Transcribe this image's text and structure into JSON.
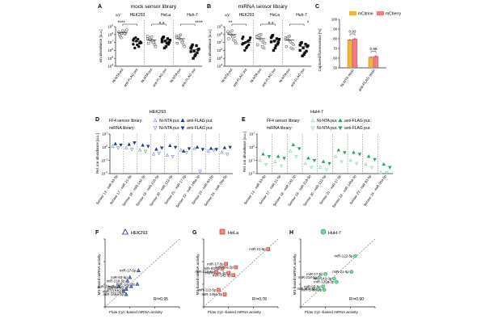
{
  "colors": {
    "axis": "#222222",
    "grid_sep": "#666666",
    "open_marker": "#666666",
    "dark_marker": "#111111",
    "hek_blue": "#1d3a8a",
    "hek_blue_open": "#6f86c9",
    "huh_green": "#22a35a",
    "huh_green_open": "#7ad49b",
    "hela_red": "#c0392b",
    "hela_red_light": "#f08a8a",
    "bar_yellow": "#f0b63a",
    "bar_pink": "#f47a86"
  },
  "panels": {
    "A": {
      "letter": "A",
      "title": "mock sensor library",
      "cell_lines": [
        "HEK293",
        "HeLa",
        "Huh-7"
      ],
      "row_marker": "x/y",
      "ylabel": "Ion abundance [a.u.]",
      "yticks": [
        "10^9",
        "10^8",
        "10^7",
        "10^6",
        "10^5",
        "10^4"
      ],
      "xlabels": [
        "Ni-NTA pur.",
        "anti-FLAG pur.",
        "Ni-NTA pur.",
        "anti-FLAG pur.",
        "Ni-NTA pur.",
        "anti-FLAG pur."
      ],
      "significance": [
        "****",
        "n.s",
        "****"
      ],
      "chart_data": {
        "type": "scatter",
        "yscale": "log",
        "ylim": [
          10000,
          1000000000
        ],
        "categories": [
          "HEK293 Ni-NTA pur.",
          "HEK293 anti-FLAG pur.",
          "HeLa Ni-NTA pur.",
          "HeLa anti-FLAG pur.",
          "Huh-7 Ni-NTA pur.",
          "Huh-7 anti-FLAG pur."
        ],
        "series": [
          {
            "values": [
              200000000,
              150000000,
              120000000,
              90000000,
              300000000,
              250000000,
              60000000,
              180000000,
              400000000,
              40000000,
              140000000,
              220000000
            ]
          },
          {
            "values": [
              20000000,
              15000000,
              8000000,
              30000000,
              5000000,
              12000000,
              2000000,
              25000000,
              9000000,
              40000000,
              3000000,
              6000000
            ]
          },
          {
            "values": [
              30000000,
              20000000,
              12000000,
              8000000,
              50000000,
              5000000,
              40000000,
              15000000,
              3000000,
              25000000,
              10000000,
              60000000
            ]
          },
          {
            "values": [
              25000000,
              15000000,
              6000000,
              40000000,
              3000000,
              10000000,
              50000000,
              8000000,
              20000000,
              2000000,
              30000000,
              12000000
            ]
          },
          {
            "values": [
              60000000,
              30000000,
              15000000,
              8000000,
              90000000,
              5000000,
              45000000,
              20000000,
              3000000,
              70000000,
              10000000,
              40000000
            ]
          },
          {
            "values": [
              2000000,
              800000,
              500000,
              3000000,
              200000,
              1200000,
              5000000,
              300000,
              1500000,
              100000,
              4000000,
              700000
            ]
          }
        ]
      }
    },
    "B": {
      "letter": "B",
      "title": "miRNA sensor library",
      "cell_lines": [
        "HEK293",
        "HeLa",
        "Huh-7"
      ],
      "row_marker": "x/y",
      "ylabel": "Ion abundance [a.u.]",
      "yticks": [
        "10^9",
        "10^8",
        "10^7",
        "10^6",
        "10^5",
        "10^4"
      ],
      "xlabels": [
        "Ni-NTA pur.",
        "anti-FLAG pur.",
        "Ni-NTA pur.",
        "anti-FLAG pur.",
        "Ni-NTA pur.",
        "anti-FLAG pur."
      ],
      "significance": [
        "**",
        "n.s",
        "*"
      ],
      "chart_data": {
        "type": "scatter",
        "yscale": "log",
        "ylim": [
          10000,
          1000000000
        ],
        "categories": [
          "HEK293 Ni-NTA pur.",
          "HEK293 anti-FLAG pur.",
          "HeLa Ni-NTA pur.",
          "HeLa anti-FLAG pur.",
          "Huh-7 Ni-NTA pur.",
          "Huh-7 anti-FLAG pur."
        ],
        "series": [
          {
            "values": [
              200000000,
              100000000,
              60000000,
              30000000,
              300000000,
              15000000,
              150000000,
              50000000,
              8000000,
              120000000,
              20000000,
              250000000
            ]
          },
          {
            "values": [
              30000000,
              10000000,
              5000000,
              50000000,
              2000000,
              20000000,
              8000000,
              3000000,
              40000000,
              1000000,
              15000000,
              6000000
            ]
          },
          {
            "values": [
              60000000,
              30000000,
              12000000,
              5000000,
              100000000,
              2000000,
              40000000,
              20000000,
              8000000,
              80000000,
              3000000,
              50000000
            ]
          },
          {
            "values": [
              40000000,
              15000000,
              6000000,
              60000000,
              2000000,
              10000000,
              80000000,
              4000000,
              25000000,
              1000000,
              30000000,
              12000000
            ]
          },
          {
            "values": [
              40000000,
              20000000,
              8000000,
              3000000,
              60000000,
              1500000,
              30000000,
              12000000,
              5000000,
              50000000,
              2000000,
              25000000
            ]
          },
          {
            "values": [
              5000000,
              2000000,
              800000,
              8000000,
              300000,
              3000000,
              10000000,
              500000,
              4000000,
              200000,
              6000000,
              1000000
            ]
          }
        ]
      }
    },
    "C": {
      "letter": "C",
      "ylabel": "Captured fluorescence [%]",
      "yticks": [
        "100",
        "90",
        "80",
        "70",
        "60",
        "50"
      ],
      "legend": [
        "mCitrine",
        "mCherry"
      ],
      "xlabels": [
        "Ni-NTA resin",
        "anti-FLAG resin"
      ],
      "pvalues": [
        "0.93",
        "0.98"
      ],
      "chart_data": {
        "type": "bar",
        "ylim": [
          50,
          100
        ],
        "categories": [
          "Ni-NTA resin",
          "anti-FLAG resin"
        ],
        "series": [
          {
            "name": "mCitrine",
            "values": [
              79,
              61
            ]
          },
          {
            "name": "mCherry",
            "values": [
              80,
              62
            ]
          }
        ]
      }
    },
    "D": {
      "letter": "D",
      "cell_line": "HEK293",
      "legend_row1_label": "FF4 sensor library:",
      "legend_row2_label": "miRNA library:",
      "legend_items": [
        "Ni-NTA pur.",
        "anti-FLAG pur.",
        "Ni-NTA pur.",
        "anti-FLAG pur."
      ],
      "ylabel": "Rel. ion abundance [a.u.]",
      "yticks": [
        "10^1",
        "10^0",
        "10^-1",
        "10^-2"
      ],
      "xlabels": [
        "Sensor 13 - miR-93-5p",
        "Sensor 17 - miR-21-5p",
        "Sensor 18 - miR-142-3p",
        "Sensor 19 - miR-218-5p",
        "Sensor 20 - miR-122-5p",
        "Sensor 21 - miR-17-5p",
        "Sensor 22 - miR-146a-3p",
        "Sensor 23 - miR-93-5p",
        "Sensor 24 - miR-30a-5p"
      ],
      "chart_data": {
        "type": "scatter",
        "yscale": "log",
        "ylim": [
          0.01,
          10
        ],
        "categories": [
          "Sensor 13 - miR-93-5p",
          "Sensor 17 - miR-21-5p",
          "Sensor 18 - miR-142-3p",
          "Sensor 19 - miR-218-5p",
          "Sensor 20 - miR-122-5p",
          "Sensor 21 - miR-17-5p",
          "Sensor 22 - miR-146a-3p",
          "Sensor 23 - miR-93-5p",
          "Sensor 24 - miR-30a-5p"
        ],
        "series": [
          {
            "name": "FF4 sensor library: Ni-NTA pur.",
            "values": [
              1.2,
              0.9,
              0.6,
              0.3,
              0.25,
              0.6,
              0.8,
              0.5,
              0.4
            ]
          },
          {
            "name": "FF4 sensor library: anti-FLAG pur.",
            "values": [
              1.8,
              1.6,
              1.4,
              0.7,
              1.3,
              0.5,
              1.0,
              0.8,
              0.9
            ]
          },
          {
            "name": "miRNA library: Ni-NTA pur.",
            "values": [
              0.9,
              0.7,
              0.5,
              0.35,
              0.2,
              0.4,
              0.015,
              0.6,
              0.3
            ]
          },
          {
            "name": "miRNA library: anti-FLAG pur.",
            "values": [
              1.5,
              2.2,
              1.2,
              0.9,
              1.0,
              0.8,
              0.7,
              0.7,
              1.0
            ]
          }
        ]
      }
    },
    "E": {
      "letter": "E",
      "cell_line": "HuH-7",
      "legend_row1_label": "FF4 sensor library:",
      "legend_row2_label": "miRNA library:",
      "legend_items": [
        "Ni-NTA pur.",
        "anti-FLAG pur.",
        "Ni-NTA pur.",
        "anti-FLAG pur."
      ],
      "ylabel": "Rel. ion abundance [a.u.]",
      "yticks": [
        "10^1",
        "10^0",
        "10^-1",
        "10^-2"
      ],
      "xlabels": [
        "Sensor 13 - miR-93-5p",
        "Sensor 17 - miR-21-5p",
        "Sensor 18 - miR-142-3p",
        "Sensor 19 - miR-218-5p",
        "Sensor 20 - miR-122-5p",
        "Sensor 21 - miR-17-5p",
        "Sensor 22 - miR-146a-3p",
        "Sensor 23 - miR-93-5p",
        "Sensor 24 - miR-30a-5p"
      ],
      "chart_data": {
        "type": "scatter",
        "yscale": "log",
        "ylim": [
          0.01,
          10
        ],
        "categories": [
          "Sensor 13 - miR-93-5p",
          "Sensor 17 - miR-21-5p",
          "Sensor 18 - miR-142-3p",
          "Sensor 19 - miR-218-5p",
          "Sensor 20 - miR-122-5p",
          "Sensor 21 - miR-17-5p",
          "Sensor 22 - miR-146a-3p",
          "Sensor 23 - miR-93-5p",
          "Sensor 24 - miR-30a-5p"
        ],
        "series": [
          {
            "name": "FF4 sensor library: Ni-NTA pur.",
            "values": [
              0.1,
              0.08,
              0.5,
              0.06,
              0.03,
              0.2,
              0.1,
              0.05,
              0.012
            ]
          },
          {
            "name": "FF4 sensor library: anti-FLAG pur.",
            "values": [
              0.3,
              0.2,
              1.5,
              0.15,
              0.08,
              0.6,
              0.4,
              0.2,
              0.05
            ]
          },
          {
            "name": "miRNA library: Ni-NTA pur.",
            "values": [
              0.05,
              0.04,
              0.2,
              0.03,
              0.02,
              0.08,
              0.06,
              0.03,
              0.012
            ]
          },
          {
            "name": "miRNA library: anti-FLAG pur.",
            "values": [
              0.2,
              0.15,
              0.8,
              0.1,
              0.06,
              0.4,
              0.3,
              0.12,
              0.03
            ]
          }
        ]
      }
    },
    "F": {
      "letter": "F",
      "cell_line": "HEK293",
      "xlabel": "Flow Cyt.-based mRNA activity",
      "ylabel": "MS-based miRNA activity",
      "r2": "R²=0.95",
      "chart_data": {
        "type": "scatter",
        "points": [
          {
            "label": "miR-17-5p",
            "x": 1.35,
            "y": 1.6
          },
          {
            "label": "miR-93-5p",
            "x": 1.0,
            "y": 1.3
          },
          {
            "label": "miR-218-5p",
            "x": 0.9,
            "y": 1.15
          },
          {
            "label": "miR-142-3p",
            "x": 1.3,
            "y": 1.0
          },
          {
            "label": "miR-30a-5p",
            "x": 0.55,
            "y": 0.9
          },
          {
            "label": "miR-130a-3p",
            "x": 1.05,
            "y": 0.9
          },
          {
            "label": "miR-21-5p",
            "x": 0.85,
            "y": 0.78
          },
          {
            "label": "miR-122-5p",
            "x": 0.75,
            "y": 0.68
          },
          {
            "label": "miR-146a-3p",
            "x": 0.85,
            "y": 0.55
          }
        ]
      }
    },
    "G": {
      "letter": "G",
      "cell_line": "HeLa",
      "xlabel": "Flow Cyt.-based mRNA activity",
      "ylabel": "MS-based miRNA activity",
      "r2": "R²=0.78",
      "chart_data": {
        "type": "scatter",
        "points": [
          {
            "label": "miR-21-5p",
            "x": 2.6,
            "y": 2.55
          },
          {
            "label": "miR-17-5p",
            "x": 0.9,
            "y": 1.9
          },
          {
            "label": "miR-93-5p",
            "x": 0.75,
            "y": 1.7
          },
          {
            "label": "miR-130a-3p",
            "x": 1.0,
            "y": 1.5
          },
          {
            "label": "miR-30a-5p",
            "x": 1.3,
            "y": 1.75
          },
          {
            "label": "miR-218-5p",
            "x": 0.5,
            "y": 1.55
          },
          {
            "label": "miR-142-3p",
            "x": 1.2,
            "y": 1.4
          },
          {
            "label": "miR-122-5p",
            "x": 0.6,
            "y": 0.75
          },
          {
            "label": "miR-146a-3p",
            "x": 0.85,
            "y": 0.55
          }
        ]
      }
    },
    "H": {
      "letter": "H",
      "cell_line": "HuH-7",
      "xlabel": "Flow Cyt.-based mRNA activity",
      "ylabel": "MS-based miRNA activity",
      "r2": "R²=0.90",
      "chart_data": {
        "type": "scatter",
        "points": [
          {
            "label": "miR-122-5p",
            "x": 2.2,
            "y": 2.25
          },
          {
            "label": "miR-21-5p",
            "x": 2.05,
            "y": 1.55
          },
          {
            "label": "miR-142-3p",
            "x": 1.35,
            "y": 1.25
          },
          {
            "label": "miR-130a-3p",
            "x": 1.45,
            "y": 1.1
          },
          {
            "label": "miR-17-5p",
            "x": 1.0,
            "y": 1.45
          },
          {
            "label": "miR-218-5p",
            "x": 0.75,
            "y": 1.3
          },
          {
            "label": "miR-93-5p",
            "x": 0.9,
            "y": 0.9
          },
          {
            "label": "miR-146a-3p",
            "x": 0.95,
            "y": 0.75
          },
          {
            "label": "miR-30a-5p",
            "x": 0.7,
            "y": 0.8
          }
        ]
      }
    }
  }
}
